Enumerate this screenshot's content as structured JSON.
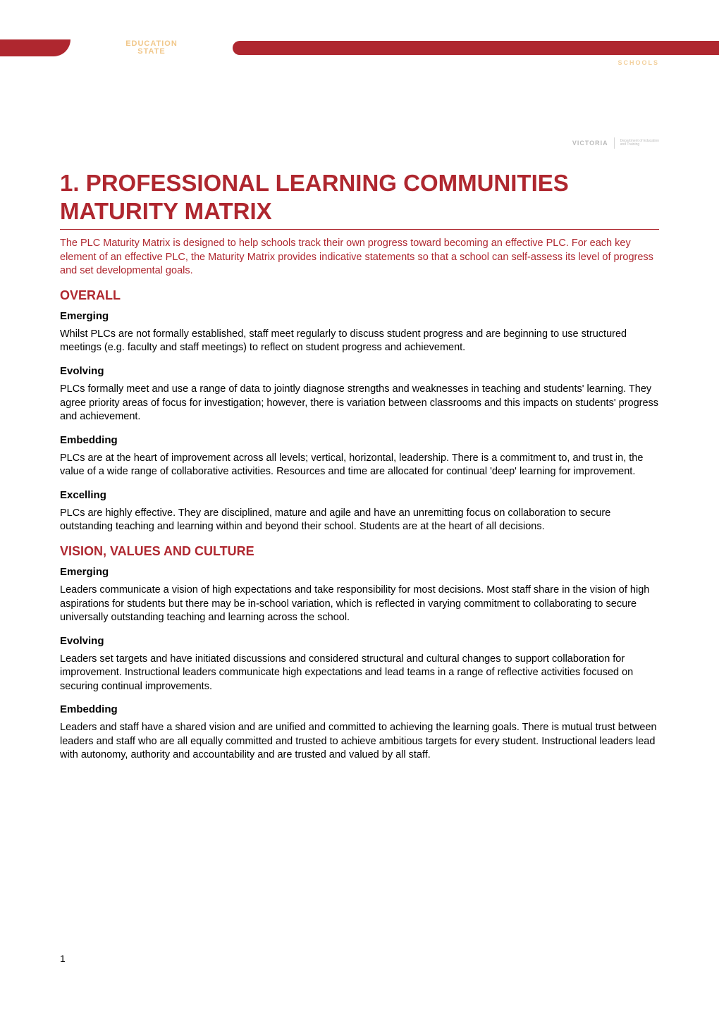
{
  "header": {
    "logo_line1": "EDUCATION",
    "logo_line2": "STATE",
    "right_label": "SCHOOLS",
    "sub_logo_brand": "VICTORIA",
    "sub_logo_tag1": "Department of Education",
    "sub_logo_tag2": "and Training"
  },
  "main_heading": "1.   PROFESSIONAL LEARNING COMMUNITIES MATURITY MATRIX",
  "intro": "The PLC Maturity Matrix is designed to help schools track their own progress toward becoming an effective PLC. For each key element of an effective PLC, the Maturity Matrix provides indicative statements so that a school can self-assess its level of progress and set developmental goals.",
  "sections": [
    {
      "title": "OVERALL",
      "subsections": [
        {
          "title": "Emerging",
          "body": "Whilst PLCs are not formally established, staff meet regularly to discuss student progress and are beginning to use structured meetings (e.g. faculty and staff meetings) to reflect on student progress and achievement."
        },
        {
          "title": "Evolving",
          "body": "PLCs formally meet and use a range of data to jointly diagnose strengths and weaknesses in teaching and students' learning. They agree priority areas of focus for investigation; however, there is variation between classrooms and this impacts on students' progress and achievement."
        },
        {
          "title": "Embedding",
          "body": "PLCs are at the heart of improvement across all levels; vertical, horizontal, leadership. There is a commitment to, and trust in, the value of a wide range of collaborative activities. Resources and time are allocated for continual 'deep' learning for improvement."
        },
        {
          "title": "Excelling",
          "body": "PLCs are highly effective. They are disciplined, mature and agile and have an unremitting focus on collaboration to secure outstanding teaching and learning within and beyond their school. Students are at the heart of all decisions."
        }
      ]
    },
    {
      "title": "VISION, VALUES AND CULTURE",
      "subsections": [
        {
          "title": "Emerging",
          "body": "Leaders communicate a vision of high expectations and take responsibility for most decisions. Most staff share in the vision of high aspirations for students but there may be in-school variation, which is reflected in varying commitment to collaborating to secure universally outstanding teaching and learning across the school."
        },
        {
          "title": "Evolving",
          "body": "Leaders set targets and have initiated discussions and considered structural and cultural changes to support collaboration for improvement. Instructional leaders communicate high expectations and lead teams in a range of reflective activities focused on securing continual improvements."
        },
        {
          "title": "Embedding",
          "body": "Leaders and staff have a shared vision and are unified and committed to achieving the learning goals. There is mutual trust between leaders and staff who are all equally committed and trusted to achieve ambitious targets for every student. Instructional leaders lead with autonomy, authority and accountability and are trusted and valued by all staff."
        }
      ]
    }
  ],
  "page_number": "1",
  "colors": {
    "brand_red": "#af272f",
    "brand_gold": "#e8a33d",
    "text_black": "#000000",
    "background": "#ffffff"
  }
}
